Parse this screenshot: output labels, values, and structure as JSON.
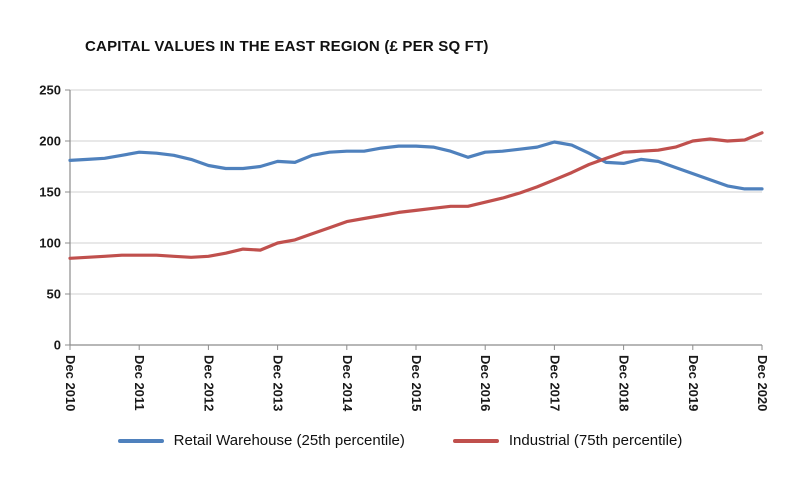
{
  "chart_data": {
    "type": "line",
    "title": "CAPITAL VALUES IN THE EAST REGION (£ PER SQ FT)",
    "xlabel": "",
    "ylabel": "",
    "ylim": [
      0,
      250
    ],
    "y_ticks": [
      0,
      50,
      100,
      150,
      200,
      250
    ],
    "grid": true,
    "legend_position": "bottom",
    "points_per_year": 4,
    "x_tick_labels": [
      "Dec 2010",
      "Dec 2011",
      "Dec 2012",
      "Dec 2013",
      "Dec 2014",
      "Dec 2015",
      "Dec 2016",
      "Dec 2017",
      "Dec 2018",
      "Dec 2019",
      "Dec 2020"
    ],
    "series": [
      {
        "name": "Retail Warehouse (25th percentile)",
        "color": "#4f81bd",
        "values": [
          181,
          182,
          183,
          186,
          189,
          188,
          186,
          182,
          176,
          173,
          173,
          175,
          180,
          179,
          186,
          189,
          190,
          190,
          193,
          195,
          195,
          194,
          190,
          184,
          189,
          190,
          192,
          194,
          199,
          196,
          188,
          179,
          178,
          182,
          180,
          174,
          168,
          162,
          156,
          153,
          153
        ]
      },
      {
        "name": "Industrial (75th percentile)",
        "color": "#c0504d",
        "values": [
          85,
          86,
          87,
          88,
          88,
          88,
          87,
          86,
          87,
          90,
          94,
          93,
          100,
          103,
          109,
          115,
          121,
          124,
          127,
          130,
          132,
          134,
          136,
          136,
          140,
          144,
          149,
          155,
          162,
          169,
          177,
          183,
          189,
          190,
          191,
          194,
          200,
          202,
          200,
          201,
          208
        ]
      }
    ],
    "style": {
      "grid_color": "#d2d2d2",
      "axis_color": "#8c8c8c",
      "tick_label_color": "#1a1a1a",
      "line_width": 3.2
    }
  }
}
